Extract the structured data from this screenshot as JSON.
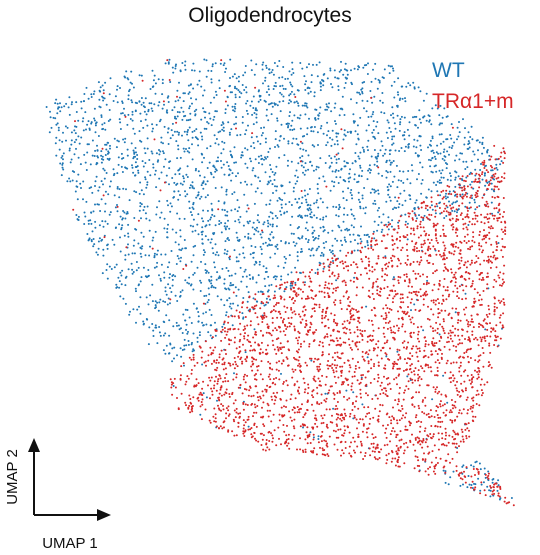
{
  "chart_data": {
    "type": "scatter",
    "title": "Oligodendrocytes",
    "xlabel": "UMAP 1",
    "ylabel": "UMAP 2",
    "grid": false,
    "legend_placement": "top-right",
    "series": [
      {
        "name": "WT",
        "color": "#1f77b4",
        "approx_count": 2700,
        "region": [
          [
            0.03,
            0.9
          ],
          [
            0.26,
            1.0
          ],
          [
            0.73,
            0.99
          ],
          [
            0.97,
            0.8
          ],
          [
            0.95,
            0.68
          ],
          [
            0.72,
            0.62
          ],
          [
            0.48,
            0.46
          ],
          [
            0.28,
            0.33
          ],
          [
            0.24,
            0.38
          ],
          [
            0.12,
            0.58
          ],
          [
            0.05,
            0.78
          ]
        ],
        "tail_region": [
          [
            0.82,
            0.1
          ],
          [
            0.92,
            0.13
          ],
          [
            1.0,
            0.03
          ],
          [
            0.86,
            0.07
          ]
        ]
      },
      {
        "name": "TRα1+m",
        "color": "#d62728",
        "approx_count": 3000,
        "region": [
          [
            0.33,
            0.36
          ],
          [
            0.44,
            0.48
          ],
          [
            0.6,
            0.56
          ],
          [
            0.82,
            0.7
          ],
          [
            0.97,
            0.81
          ],
          [
            0.97,
            0.42
          ],
          [
            0.9,
            0.18
          ],
          [
            0.84,
            0.09
          ],
          [
            0.7,
            0.13
          ],
          [
            0.48,
            0.15
          ],
          [
            0.3,
            0.24
          ],
          [
            0.28,
            0.3
          ]
        ],
        "tail_region": [
          [
            0.86,
            0.12
          ],
          [
            0.93,
            0.11
          ],
          [
            1.0,
            0.02
          ],
          [
            0.89,
            0.07
          ]
        ]
      }
    ]
  }
}
